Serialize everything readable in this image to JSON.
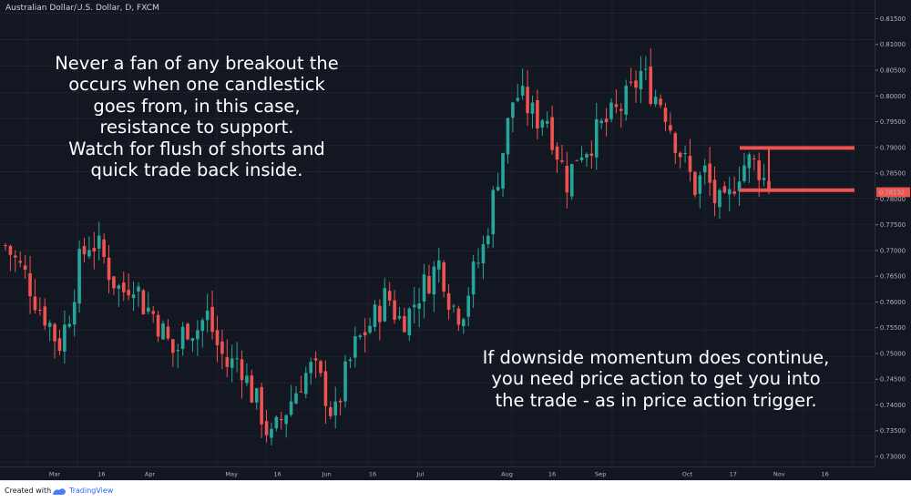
{
  "header": {
    "title": "Australian Dollar/U.S. Dollar, D, FXCM"
  },
  "annotations": {
    "top_left": [
      "Never a fan of any breakout the",
      "occurs when one candlestick",
      "goes from, in this case,",
      "resistance to support.",
      "Watch for flush of shorts and",
      "quick trade back inside."
    ],
    "bottom_right": [
      "If downside momentum does continue,",
      "you need price action to get you into",
      "the trade - as in price action trigger."
    ]
  },
  "footer": {
    "created_with": "Created with",
    "brand": "TradingView"
  },
  "colors": {
    "background": "#131722",
    "bull": "#26a69a",
    "bear": "#ef5350",
    "level": "#ef5350",
    "price_tag": "#ef5350"
  },
  "chart_data": {
    "type": "candlestick",
    "title": "Australian Dollar/U.S. Dollar, D, FXCM",
    "ylim": [
      0.7292,
      0.8175
    ],
    "y_ticks": [
      "0.81500",
      "0.81000",
      "0.80500",
      "0.80000",
      "0.79500",
      "0.79000",
      "0.78500",
      "0.78000",
      "0.77500",
      "0.77000",
      "0.76500",
      "0.76000",
      "0.75500",
      "0.75000",
      "0.74500",
      "0.74000",
      "0.73500",
      "0.73000"
    ],
    "x_ticks": [
      "Mar",
      "16",
      "Apr",
      "May",
      "16",
      "Jun",
      "16",
      "Jul",
      "Aug",
      "16",
      "Sep",
      "Oct",
      "17",
      "Nov",
      "16"
    ],
    "last_price": "0.78132",
    "levels": [
      {
        "name": "resistance",
        "value": 0.7895
      },
      {
        "name": "support",
        "value": 0.7815
      }
    ],
    "series_close_path": [
      0.771,
      0.768,
      0.765,
      0.76,
      0.757,
      0.752,
      0.758,
      0.768,
      0.772,
      0.77,
      0.765,
      0.762,
      0.765,
      0.76,
      0.758,
      0.754,
      0.75,
      0.756,
      0.755,
      0.758,
      0.752,
      0.748,
      0.75,
      0.744,
      0.74,
      0.734,
      0.738,
      0.742,
      0.746,
      0.748,
      0.744,
      0.738,
      0.746,
      0.752,
      0.755,
      0.758,
      0.762,
      0.757,
      0.758,
      0.762,
      0.765,
      0.768,
      0.76,
      0.758,
      0.765,
      0.77,
      0.78,
      0.79,
      0.8,
      0.798,
      0.795,
      0.796,
      0.789,
      0.783,
      0.789,
      0.79,
      0.793,
      0.795,
      0.797,
      0.8,
      0.804,
      0.8,
      0.798,
      0.792,
      0.787,
      0.782,
      0.785,
      0.779,
      0.778,
      0.785,
      0.787,
      0.786,
      0.7813
    ]
  }
}
